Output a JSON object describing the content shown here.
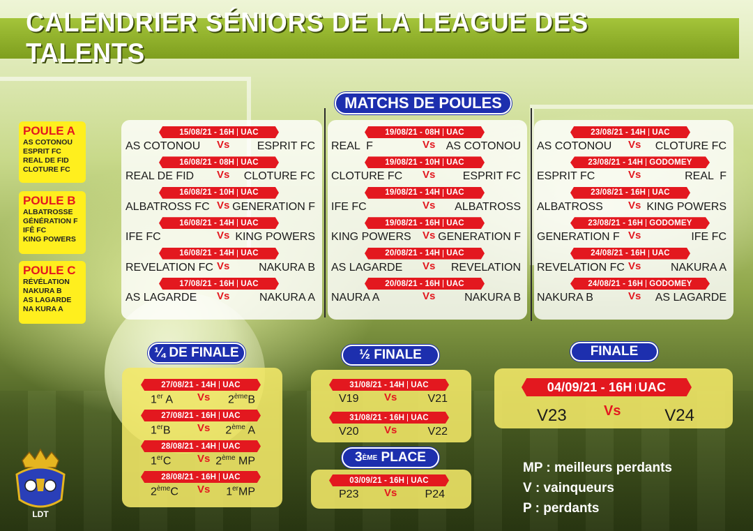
{
  "title": "CALENDRIER SÉNIORS DE LA LEAGUE DES TALENTS",
  "group_stage_heading": "MATCHS DE POULES",
  "poules": [
    {
      "name": "POULE A",
      "teams": [
        "AS COTONOU",
        "ESPRIT FC",
        "REAL DE FID",
        "CLOTURE FC"
      ]
    },
    {
      "name": "POULE B",
      "teams": [
        "ALBATROSSE",
        "GÉNÉRATION F",
        "IFÊ FC",
        "KING POWERS"
      ]
    },
    {
      "name": "POULE C",
      "teams": [
        "RÉVÉLATION",
        "NAKURA B",
        "AS LAGARDE",
        "NA  KURA A"
      ]
    }
  ],
  "vs_label": "Vs",
  "group_columns": [
    [
      {
        "date": "15/08/21 - 16H",
        "venue": "UAC",
        "home": "AS COTONOU",
        "away": "ESPRIT FC"
      },
      {
        "date": "16/08/21 - 08H",
        "venue": "UAC",
        "home": "REAL DE FID",
        "away": "CLOTURE FC"
      },
      {
        "date": "16/08/21 - 10H",
        "venue": "UAC",
        "home": "ALBATROSS FC",
        "away": "GENERATION F"
      },
      {
        "date": "16/08/21 - 14H",
        "venue": "UAC",
        "home": "IFE FC",
        "away": "KING POWERS"
      },
      {
        "date": "16/08/21 - 14H",
        "venue": "UAC",
        "home": "REVELATION FC",
        "away": "NAKURA B"
      },
      {
        "date": "17/08/21 - 16H",
        "venue": "UAC",
        "home": "AS LAGARDE",
        "away": "NAKURA A"
      }
    ],
    [
      {
        "date": "19/08/21 - 08H",
        "venue": "UAC",
        "home": "REAL  F",
        "away": "AS COTONOU"
      },
      {
        "date": "19/08/21 - 10H",
        "venue": "UAC",
        "home": "CLOTURE FC",
        "away": "ESPRIT FC"
      },
      {
        "date": "19/08/21 - 14H",
        "venue": "UAC",
        "home": "IFE FC",
        "away": "ALBATROSS"
      },
      {
        "date": "19/08/21 - 16H",
        "venue": "UAC",
        "home": "KING POWERS",
        "away": "GENERATION F"
      },
      {
        "date": "20/08/21 - 14H",
        "venue": "UAC",
        "home": "AS LAGARDE",
        "away": "REVELATION"
      },
      {
        "date": "20/08/21 - 16H",
        "venue": "UAC",
        "home": "NAURA A",
        "away": "NAKURA B"
      }
    ],
    [
      {
        "date": "23/08/21 - 14H",
        "venue": "UAC",
        "home": "AS COTONOU",
        "away": "CLOTURE FC"
      },
      {
        "date": "23/08/21 - 14H",
        "venue": "GODOMEY",
        "home": "ESPRIT FC",
        "away": "REAL  F"
      },
      {
        "date": "23/08/21 - 16H",
        "venue": "UAC",
        "home": "ALBATROSS",
        "away": "KING POWERS"
      },
      {
        "date": "23/08/21 - 16H",
        "venue": "GODOMEY",
        "home": "GENERATION F",
        "away": "IFE FC"
      },
      {
        "date": "24/08/21 - 16H",
        "venue": "UAC",
        "home": "REVELATION FC",
        "away": "NAKURA A"
      },
      {
        "date": "24/08/21 - 16H",
        "venue": "GODOMEY",
        "home": "NAKURA B",
        "away": "AS LAGARDE"
      }
    ]
  ],
  "quarter": {
    "heading": "¼ DE FINALE",
    "matches": [
      {
        "date": "27/08/21 - 14H",
        "venue": "UAC",
        "home_main": "1",
        "home_sup": "er",
        "home_tail": " A",
        "away_main": "2",
        "away_sup": "ème",
        "away_tail": "B"
      },
      {
        "date": "27/08/21 - 16H",
        "venue": "UAC",
        "home_main": "1",
        "home_sup": "er",
        "home_tail": "B",
        "away_main": "2",
        "away_sup": "ème",
        "away_tail": " A"
      },
      {
        "date": "28/08/21 - 14H",
        "venue": "UAC",
        "home_main": "1",
        "home_sup": "er",
        "home_tail": "C",
        "away_main": "2",
        "away_sup": "ème",
        "away_tail": " MP"
      },
      {
        "date": "28/08/21 - 16H",
        "venue": "UAC",
        "home_main": "2",
        "home_sup": "ème",
        "home_tail": "C",
        "away_main": "1",
        "away_sup": "er",
        "away_tail": "MP"
      }
    ]
  },
  "semi": {
    "heading": "½ FINALE",
    "matches": [
      {
        "date": "31/08/21 - 14H",
        "venue": "UAC",
        "home": "V19",
        "away": "V21"
      },
      {
        "date": "31/08/21 - 16H",
        "venue": "UAC",
        "home": "V20",
        "away": "V22"
      }
    ]
  },
  "third": {
    "heading_main": "3",
    "heading_sup": "ÈME",
    "heading_tail": " PLACE",
    "match": {
      "date": "03/09/21 - 16H",
      "venue": "UAC",
      "home": "P23",
      "away": "P24"
    }
  },
  "final": {
    "heading": "FINALE",
    "match": {
      "date": "04/09/21 - 16H",
      "venue": "UAC",
      "home": "V23",
      "away": "V24"
    }
  },
  "legend": [
    "MP : meilleurs perdants",
    "V : vainqueurs",
    "P : perdants"
  ],
  "logo_text": "LDT",
  "colors": {
    "accent_red": "#e3181f",
    "pill_blue": "#1d2fae",
    "title_green": "#8fb02a",
    "poule_yellow": "#ffef1e"
  }
}
